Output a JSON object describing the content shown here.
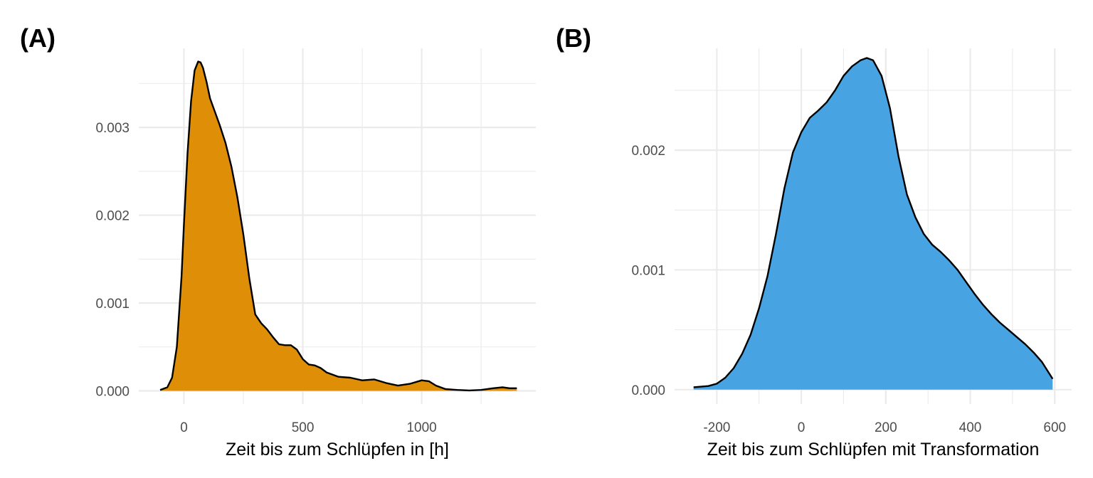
{
  "chart_data": [
    {
      "panel_label": "(A)",
      "type": "area",
      "xlabel": "Zeit bis zum Schlüpfen in [h]",
      "ylabel": "",
      "fill_color": "#DF8E08",
      "line_color": "#000000",
      "xlim": [
        -190,
        1480
      ],
      "ylim": [
        -0.00015,
        0.0039
      ],
      "x_ticks": [
        0,
        500,
        1000
      ],
      "x_tick_labels": [
        "0",
        "500",
        "1000"
      ],
      "y_ticks": [
        0,
        0.001,
        0.002,
        0.003
      ],
      "y_tick_labels": [
        "0.000",
        "0.001",
        "0.002",
        "0.003"
      ],
      "grid": true,
      "x": [
        -100,
        -70,
        -50,
        -30,
        -10,
        0,
        15,
        30,
        45,
        60,
        70,
        80,
        95,
        110,
        130,
        150,
        175,
        200,
        225,
        250,
        275,
        300,
        325,
        350,
        375,
        400,
        425,
        450,
        475,
        500,
        525,
        550,
        575,
        600,
        650,
        700,
        750,
        800,
        850,
        900,
        950,
        1000,
        1030,
        1060,
        1100,
        1150,
        1200,
        1250,
        1300,
        1340,
        1370,
        1400
      ],
      "y": [
        1e-05,
        4e-05,
        0.00015,
        0.0005,
        0.0013,
        0.0019,
        0.0027,
        0.0033,
        0.00365,
        0.00375,
        0.00374,
        0.00368,
        0.00352,
        0.00333,
        0.00318,
        0.00303,
        0.00282,
        0.00255,
        0.0022,
        0.00178,
        0.00128,
        0.00087,
        0.00077,
        0.0007,
        0.00061,
        0.00053,
        0.00052,
        0.00052,
        0.00047,
        0.00036,
        0.0003,
        0.00029,
        0.00026,
        0.00021,
        0.00016,
        0.00015,
        0.00012,
        0.00013,
        9e-05,
        6e-05,
        8e-05,
        0.00012,
        0.00011,
        6e-05,
        2e-05,
        1e-05,
        5e-06,
        1e-05,
        3e-05,
        4e-05,
        3e-05,
        3e-05
      ]
    },
    {
      "panel_label": "(B)",
      "type": "area",
      "xlabel": "Zeit bis zum Schlüpfen mit Transformation",
      "ylabel": "",
      "fill_color": "#48A3E2",
      "line_color": "#000000",
      "xlim": [
        -300,
        640
      ],
      "ylim": [
        -0.00012,
        0.00285
      ],
      "x_ticks": [
        -200,
        0,
        200,
        400,
        600
      ],
      "x_tick_labels": [
        "-200",
        "0",
        "200",
        "400",
        "600"
      ],
      "y_ticks": [
        0,
        0.001,
        0.002
      ],
      "y_tick_labels": [
        "0.000",
        "0.001",
        "0.002"
      ],
      "grid": true,
      "x": [
        -255,
        -220,
        -200,
        -180,
        -160,
        -140,
        -120,
        -100,
        -80,
        -60,
        -40,
        -20,
        0,
        20,
        40,
        60,
        80,
        100,
        120,
        140,
        155,
        170,
        190,
        210,
        230,
        250,
        270,
        290,
        310,
        330,
        350,
        370,
        390,
        410,
        430,
        450,
        470,
        490,
        510,
        530,
        550,
        570,
        595
      ],
      "y": [
        2e-05,
        3e-05,
        5e-05,
        0.0001,
        0.00018,
        0.0003,
        0.00046,
        0.00068,
        0.00095,
        0.0013,
        0.00168,
        0.00198,
        0.00215,
        0.00227,
        0.00233,
        0.0024,
        0.0025,
        0.00262,
        0.0027,
        0.00275,
        0.00277,
        0.00275,
        0.00262,
        0.00235,
        0.00195,
        0.00163,
        0.00144,
        0.0013,
        0.00121,
        0.00115,
        0.00108,
        0.001,
        0.0009,
        0.0008,
        0.00071,
        0.00063,
        0.00056,
        0.0005,
        0.00044,
        0.00038,
        0.00031,
        0.00023,
        9e-05
      ]
    }
  ]
}
